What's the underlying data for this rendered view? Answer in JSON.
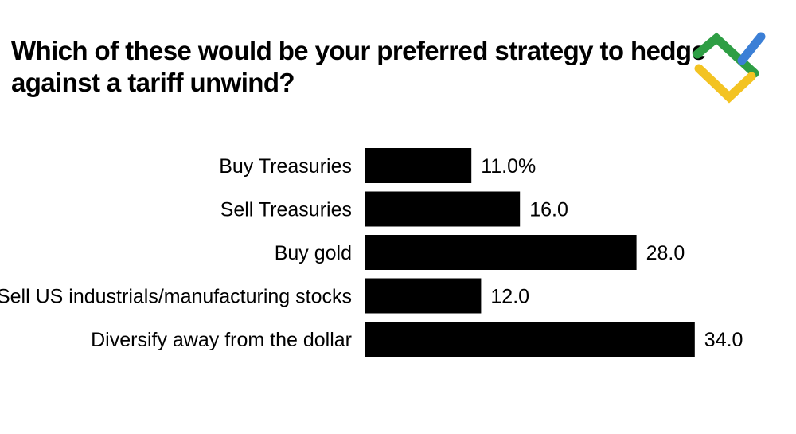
{
  "chart_data": {
    "type": "bar",
    "orientation": "horizontal",
    "title": "Which of these would be your preferred strategy to hedge against a tariff unwind?",
    "categories": [
      "Buy Treasuries",
      "Sell Treasuries",
      "Buy gold",
      "Sell US industrials/manufacturing stocks",
      "Diversify away from the dollar"
    ],
    "values": [
      11.0,
      16.0,
      28.0,
      12.0,
      34.0
    ],
    "value_labels": [
      "11.0%",
      "16.0",
      "28.0",
      "12.0",
      "34.0"
    ],
    "xlabel": "",
    "ylabel": "",
    "xlim": [
      0,
      40
    ],
    "grid": false,
    "legend": "none",
    "bar_color": "#000000"
  },
  "logo": {
    "colors": [
      "#2e9e44",
      "#3b7fd6",
      "#f3c322"
    ]
  }
}
